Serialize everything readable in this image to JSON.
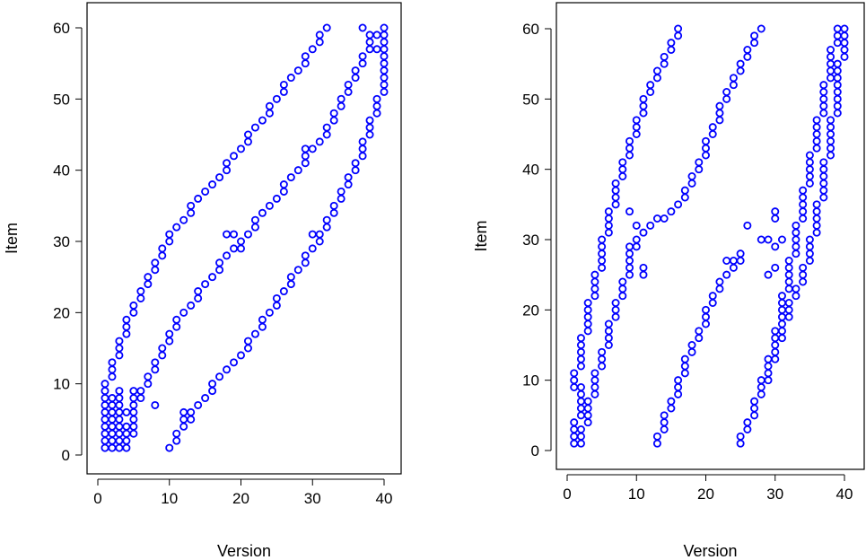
{
  "chart_data": [
    {
      "type": "scatter",
      "title": "",
      "xlabel": "Version",
      "ylabel": "Item",
      "xlim": [
        0,
        40
      ],
      "ylim": [
        0,
        60
      ],
      "xticks": [
        0,
        10,
        20,
        30,
        40
      ],
      "yticks": [
        0,
        10,
        20,
        30,
        40,
        50,
        60
      ],
      "marker": "open-circle",
      "color": "#0000ff",
      "segments": [
        {
          "from": [
            1,
            9
          ],
          "to": [
            2,
            12
          ]
        },
        {
          "from": [
            2,
            12
          ],
          "to": [
            5,
            21
          ]
        },
        {
          "from": [
            5,
            21
          ],
          "to": [
            10,
            31
          ]
        },
        {
          "from": [
            10,
            31
          ],
          "to": [
            20,
            43
          ]
        },
        {
          "from": [
            20,
            43
          ],
          "to": [
            30,
            57
          ]
        },
        {
          "from": [
            30,
            57
          ],
          "to": [
            32,
            60
          ]
        },
        {
          "from": [
            1,
            1
          ],
          "to": [
            1,
            8
          ]
        },
        {
          "from": [
            2,
            1
          ],
          "to": [
            2,
            8
          ]
        },
        {
          "from": [
            3,
            1
          ],
          "to": [
            3,
            9
          ]
        },
        {
          "from": [
            4,
            1
          ],
          "to": [
            5,
            9
          ]
        },
        {
          "from": [
            5,
            6
          ],
          "to": [
            10,
            17
          ]
        },
        {
          "from": [
            10,
            17
          ],
          "to": [
            18,
            28
          ]
        },
        {
          "from": [
            18,
            28
          ],
          "to": [
            25,
            36
          ]
        },
        {
          "from": [
            25,
            36
          ],
          "to": [
            33,
            47
          ]
        },
        {
          "from": [
            33,
            47
          ],
          "to": [
            38,
            58
          ]
        },
        {
          "from": [
            38,
            58
          ],
          "to": [
            40,
            60
          ]
        },
        {
          "from": [
            10,
            1
          ],
          "to": [
            12,
            5
          ]
        },
        {
          "from": [
            12,
            5
          ],
          "to": [
            20,
            14
          ]
        },
        {
          "from": [
            20,
            14
          ],
          "to": [
            30,
            29
          ]
        },
        {
          "from": [
            30,
            29
          ],
          "to": [
            35,
            38
          ]
        },
        {
          "from": [
            35,
            38
          ],
          "to": [
            38,
            46
          ]
        },
        {
          "from": [
            38,
            46
          ],
          "to": [
            40,
            52
          ]
        },
        {
          "from": [
            40,
            52
          ],
          "to": [
            40,
            60
          ]
        }
      ],
      "extra_points": [
        [
          8,
          7
        ],
        [
          12,
          6
        ],
        [
          13,
          5
        ],
        [
          18,
          31
        ],
        [
          19,
          31
        ],
        [
          20,
          29
        ],
        [
          30,
          31
        ],
        [
          31,
          31
        ],
        [
          29,
          43
        ],
        [
          4,
          6
        ],
        [
          5,
          3
        ],
        [
          5,
          4
        ],
        [
          37,
          60
        ],
        [
          38,
          59
        ],
        [
          39,
          57
        ],
        [
          40,
          55
        ],
        [
          40,
          54
        ]
      ]
    },
    {
      "type": "scatter",
      "title": "",
      "xlabel": "Version",
      "ylabel": "Item",
      "xlim": [
        0,
        40
      ],
      "ylim": [
        0,
        60
      ],
      "xticks": [
        0,
        10,
        20,
        30,
        40
      ],
      "yticks": [
        0,
        10,
        20,
        30,
        40,
        50,
        60
      ],
      "marker": "open-circle",
      "color": "#0000ff",
      "segments": [
        {
          "from": [
            1,
            9
          ],
          "to": [
            3,
            19
          ]
        },
        {
          "from": [
            3,
            19
          ],
          "to": [
            7,
            37
          ]
        },
        {
          "from": [
            7,
            37
          ],
          "to": [
            12,
            52
          ]
        },
        {
          "from": [
            12,
            52
          ],
          "to": [
            16,
            60
          ]
        },
        {
          "from": [
            1,
            1
          ],
          "to": [
            2,
            9
          ]
        },
        {
          "from": [
            2,
            1
          ],
          "to": [
            4,
            10
          ]
        },
        {
          "from": [
            4,
            10
          ],
          "to": [
            10,
            30
          ]
        },
        {
          "from": [
            10,
            30
          ],
          "to": [
            16,
            35
          ]
        },
        {
          "from": [
            16,
            35
          ],
          "to": [
            19,
            40
          ]
        },
        {
          "from": [
            19,
            40
          ],
          "to": [
            23,
            51
          ]
        },
        {
          "from": [
            23,
            51
          ],
          "to": [
            28,
            60
          ]
        },
        {
          "from": [
            13,
            1
          ],
          "to": [
            17,
            12
          ]
        },
        {
          "from": [
            17,
            12
          ],
          "to": [
            22,
            24
          ]
        },
        {
          "from": [
            22,
            24
          ],
          "to": [
            25,
            28
          ]
        },
        {
          "from": [
            25,
            1
          ],
          "to": [
            28,
            9
          ]
        },
        {
          "from": [
            28,
            9
          ],
          "to": [
            35,
            28
          ]
        },
        {
          "from": [
            35,
            28
          ],
          "to": [
            38,
            44
          ]
        },
        {
          "from": [
            38,
            44
          ],
          "to": [
            40,
            60
          ]
        },
        {
          "from": [
            29,
            10
          ],
          "to": [
            34,
            35
          ]
        },
        {
          "from": [
            34,
            35
          ],
          "to": [
            39,
            60
          ]
        }
      ],
      "extra_points": [
        [
          9,
          34
        ],
        [
          10,
          32
        ],
        [
          9,
          29
        ],
        [
          11,
          26
        ],
        [
          11,
          25
        ],
        [
          13,
          33
        ],
        [
          14,
          33
        ],
        [
          26,
          32
        ],
        [
          28,
          30
        ],
        [
          29,
          30
        ],
        [
          30,
          29
        ],
        [
          30,
          34
        ],
        [
          31,
          30
        ],
        [
          30,
          26
        ],
        [
          29,
          25
        ],
        [
          24,
          27
        ],
        [
          25,
          27
        ],
        [
          25,
          28
        ],
        [
          23,
          27
        ],
        [
          30,
          33
        ]
      ]
    }
  ]
}
